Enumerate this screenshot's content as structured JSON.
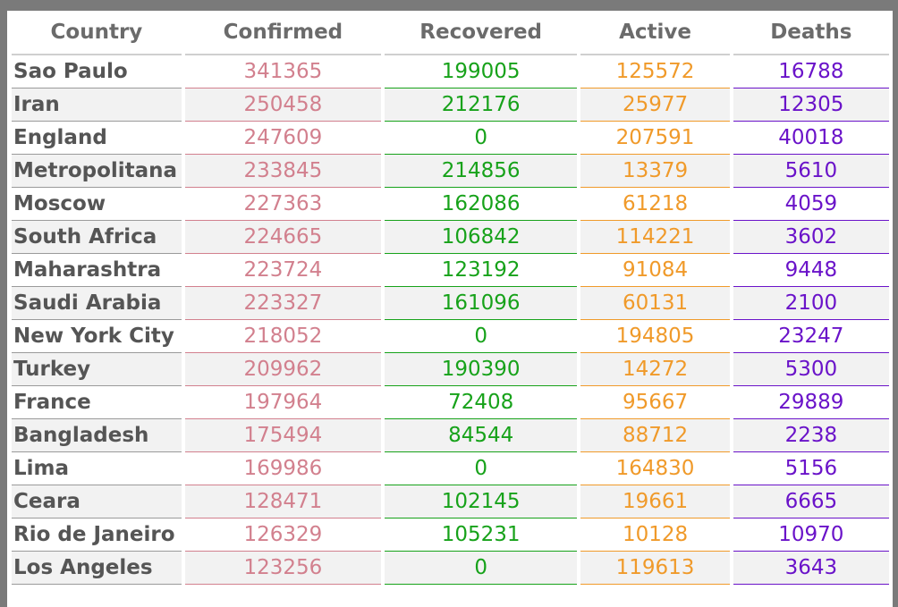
{
  "colors": {
    "country": "#555555",
    "confirmed": "#d2808e",
    "recovered": "#17a21a",
    "active": "#f09a2a",
    "deaths": "#6a13c9"
  },
  "headers": [
    "Country",
    "Confirmed",
    "Recovered",
    "Active",
    "Deaths"
  ],
  "rows": [
    [
      "Sao Paulo",
      "341365",
      "199005",
      "125572",
      "16788"
    ],
    [
      "Iran",
      "250458",
      "212176",
      "25977",
      "12305"
    ],
    [
      "England",
      "247609",
      "0",
      "207591",
      "40018"
    ],
    [
      "Metropolitana",
      "233845",
      "214856",
      "13379",
      "5610"
    ],
    [
      "Moscow",
      "227363",
      "162086",
      "61218",
      "4059"
    ],
    [
      "South Africa",
      "224665",
      "106842",
      "114221",
      "3602"
    ],
    [
      "Maharashtra",
      "223724",
      "123192",
      "91084",
      "9448"
    ],
    [
      "Saudi Arabia",
      "223327",
      "161096",
      "60131",
      "2100"
    ],
    [
      "New York City",
      "218052",
      "0",
      "194805",
      "23247"
    ],
    [
      "Turkey",
      "209962",
      "190390",
      "14272",
      "5300"
    ],
    [
      "France",
      "197964",
      "72408",
      "95667",
      "29889"
    ],
    [
      "Bangladesh",
      "175494",
      "84544",
      "88712",
      "2238"
    ],
    [
      "Lima",
      "169986",
      "0",
      "164830",
      "5156"
    ],
    [
      "Ceara",
      "128471",
      "102145",
      "19661",
      "6665"
    ],
    [
      "Rio de Janeiro",
      "126329",
      "105231",
      "10128",
      "10970"
    ],
    [
      "Los Angeles",
      "123256",
      "0",
      "119613",
      "3643"
    ]
  ]
}
